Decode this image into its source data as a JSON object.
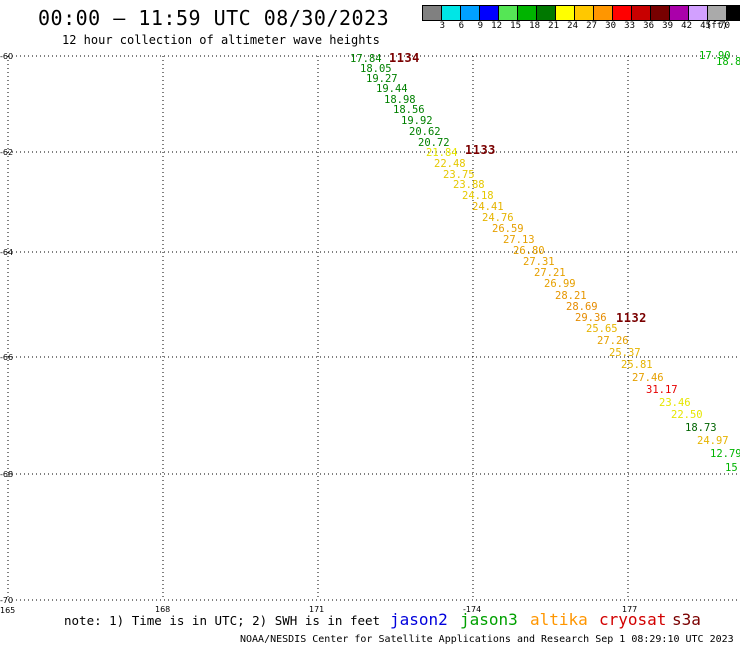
{
  "title": "00:00 – 11:59 UTC 08/30/2023",
  "subtitle": "12 hour collection of altimeter wave heights",
  "legend": {
    "unit": "(ft)",
    "colors": [
      "#808080",
      "#00e6e6",
      "#00a0ff",
      "#0000ff",
      "#55e655",
      "#00b400",
      "#007800",
      "#ffff00",
      "#ffc800",
      "#ff9600",
      "#ff0000",
      "#c80000",
      "#780000",
      "#aa00aa",
      "#d2a0ff",
      "#aaaaaa",
      "#000000"
    ],
    "labels": [
      "3",
      "6",
      "9",
      "12",
      "15",
      "18",
      "21",
      "24",
      "27",
      "30",
      "33",
      "36",
      "39",
      "42",
      "45",
      "70"
    ]
  },
  "axes": {
    "y_labels": [
      "-60",
      "-62",
      "-64",
      "-66",
      "-68",
      "-70"
    ],
    "x_labels": [
      "165",
      "168",
      "171",
      "-174",
      "177"
    ]
  },
  "track": {
    "observations": [
      {
        "text": "17.84",
        "color": "#008000"
      },
      {
        "text": "18.05",
        "color": "#008000"
      },
      {
        "text": "19.27",
        "color": "#008000"
      },
      {
        "text": "19.44",
        "color": "#008000"
      },
      {
        "text": "18.98",
        "color": "#008000"
      },
      {
        "text": "18.56",
        "color": "#008000"
      },
      {
        "text": "19.92",
        "color": "#008000"
      },
      {
        "text": "20.62",
        "color": "#008000"
      },
      {
        "text": "20.72",
        "color": "#008000"
      },
      {
        "text": "21.84",
        "color": "#e6e600"
      },
      {
        "text": "22.48",
        "color": "#e6c800"
      },
      {
        "text": "23.75",
        "color": "#e6c800"
      },
      {
        "text": "23.88",
        "color": "#e6c800"
      },
      {
        "text": "24.18",
        "color": "#e6c800"
      },
      {
        "text": "24.41",
        "color": "#e6b400"
      },
      {
        "text": "24.76",
        "color": "#e6b400"
      },
      {
        "text": "26.59",
        "color": "#e6a000"
      },
      {
        "text": "27.13",
        "color": "#e6a000"
      },
      {
        "text": "26.80",
        "color": "#e6a000"
      },
      {
        "text": "27.31",
        "color": "#e6a000"
      },
      {
        "text": "27.21",
        "color": "#e6a000"
      },
      {
        "text": "26.99",
        "color": "#e6a000"
      },
      {
        "text": "28.21",
        "color": "#e69600"
      },
      {
        "text": "28.69",
        "color": "#e68c00"
      },
      {
        "text": "29.36",
        "color": "#e68c00"
      },
      {
        "text": "25.65",
        "color": "#e6b400"
      },
      {
        "text": "27.26",
        "color": "#e6a000"
      },
      {
        "text": "25.37",
        "color": "#e6b400"
      },
      {
        "text": "25.81",
        "color": "#e6b400"
      },
      {
        "text": "27.46",
        "color": "#e6a000"
      },
      {
        "text": "31.17",
        "color": "#e60000"
      },
      {
        "text": "23.46",
        "color": "#e6e600"
      },
      {
        "text": "22.50",
        "color": "#e6e600"
      },
      {
        "text": "18.73",
        "color": "#006400"
      },
      {
        "text": "24.97",
        "color": "#e6b400"
      },
      {
        "text": "12.79",
        "color": "#00b400"
      },
      {
        "text": "15.",
        "color": "#00b400"
      }
    ],
    "time_labels": [
      "1134",
      "1133",
      "1132"
    ],
    "edge_obs": [
      {
        "text": "17.90",
        "color": "#00b400"
      },
      {
        "text": "18.8",
        "color": "#00b400"
      }
    ]
  },
  "note": "note: 1) Time is in UTC; 2) SWH is in feet",
  "satellites": [
    {
      "name": "jason2",
      "color": "#0000dc"
    },
    {
      "name": "jason3",
      "color": "#00a000"
    },
    {
      "name": "altika",
      "color": "#ff9600"
    },
    {
      "name": "cryosat",
      "color": "#d20000"
    },
    {
      "name": "s3a",
      "color": "#7a0000"
    }
  ],
  "footer": "NOAA/NESDIS Center for Satellite Applications and Research   Sep  1 08:29:10 UTC 2023"
}
